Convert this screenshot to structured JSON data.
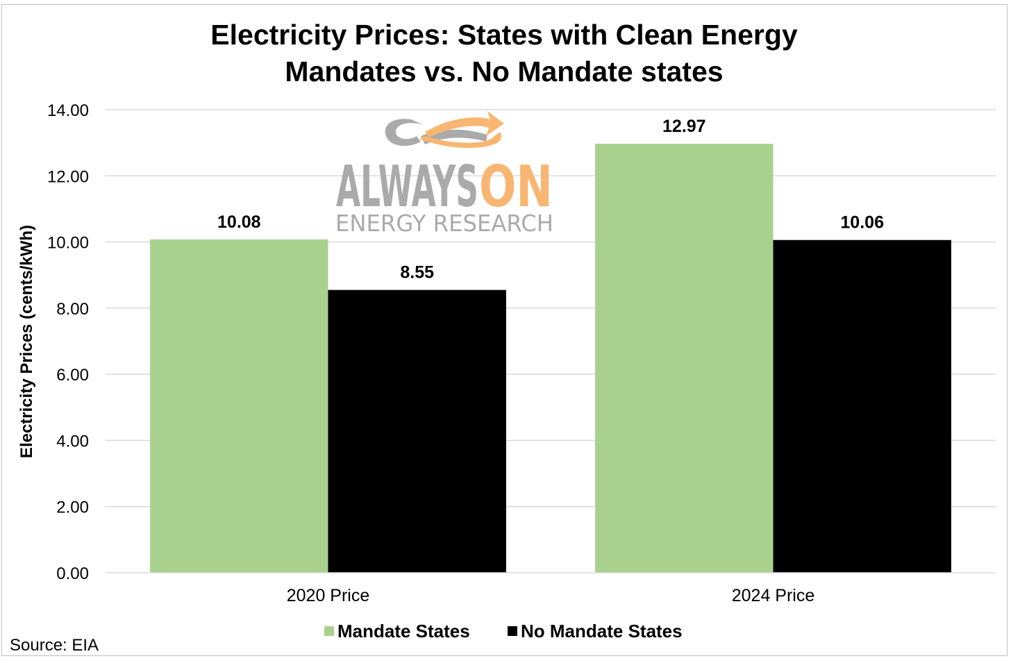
{
  "colors": {
    "mandate": "#a9d18e",
    "no_mandate": "#000000",
    "grid": "#d9d9d9",
    "watermark_gray": "#a6a6a6",
    "watermark_orange": "#f8b36b"
  },
  "watermark": {
    "word1": "ALWAYS",
    "word2": "ON",
    "subtitle": "ENERGY RESEARCH"
  },
  "source": "Source: EIA",
  "chart_data": {
    "type": "bar",
    "title_lines": [
      "Electricity Prices: States with Clean Energy",
      "Mandates vs. No Mandate states"
    ],
    "categories": [
      "2020 Price",
      "2024 Price"
    ],
    "series": [
      {
        "name": "Mandate States",
        "values": [
          10.08,
          12.97
        ],
        "labels": [
          "10.08",
          "12.97"
        ],
        "color": "#a9d18e"
      },
      {
        "name": "No Mandate States",
        "values": [
          8.55,
          10.06
        ],
        "labels": [
          "8.55",
          "10.06"
        ],
        "color": "#000000"
      }
    ],
    "xlabel": "",
    "ylabel": "Electricity Prices (cents/kWh)",
    "ylim": [
      0,
      14
    ],
    "yticks": [
      "0.00",
      "2.00",
      "4.00",
      "6.00",
      "8.00",
      "10.00",
      "12.00",
      "14.00"
    ],
    "grid": true,
    "legend_position": "bottom"
  }
}
